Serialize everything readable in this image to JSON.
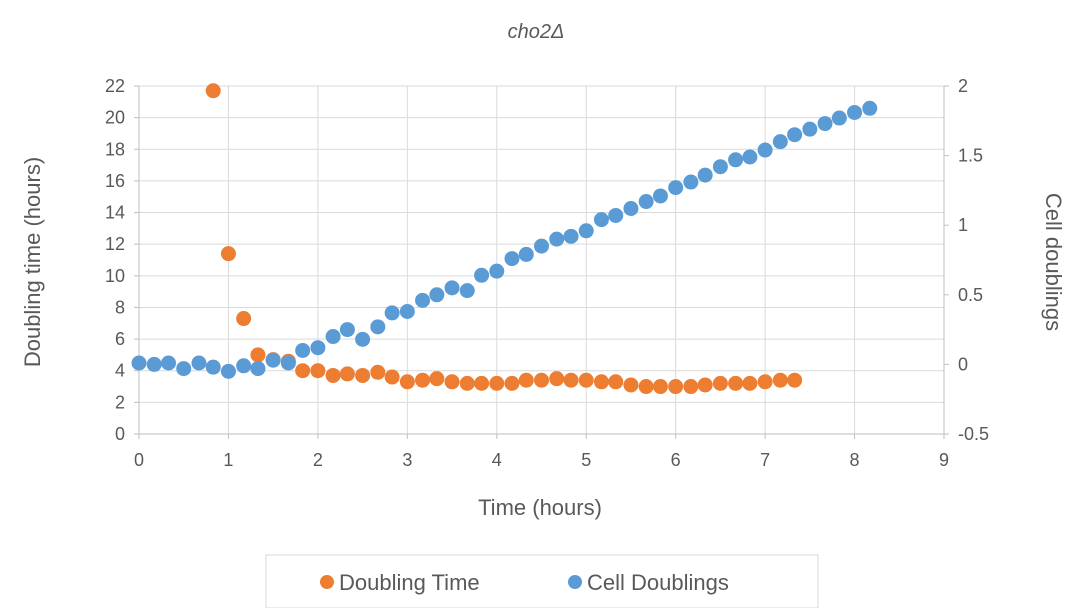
{
  "chart_data": {
    "type": "scatter",
    "title": "cho2Δ",
    "xlabel": "Time (hours)",
    "ylabel": "Doubling time (hours)",
    "y2label": "Cell doublings",
    "xlim": [
      0,
      9
    ],
    "ylim": [
      0,
      22
    ],
    "y2lim": [
      -0.5,
      2
    ],
    "xticks": [
      "0",
      "1",
      "2",
      "3",
      "4",
      "5",
      "6",
      "7",
      "8",
      "9"
    ],
    "yticks": [
      "0",
      "2",
      "4",
      "6",
      "8",
      "10",
      "12",
      "14",
      "16",
      "18",
      "20",
      "22"
    ],
    "y2ticks": [
      "-0.5",
      "0",
      "0.5",
      "1",
      "1.5",
      "2"
    ],
    "grid": true,
    "legend_position": "bottom",
    "series": [
      {
        "name": "Doubling Time",
        "axis": "left",
        "color": "#ED7D31",
        "x": [
          0.83,
          1.0,
          1.17,
          1.33,
          1.5,
          1.67,
          1.83,
          2.0,
          2.17,
          2.33,
          2.5,
          2.67,
          2.83,
          3.0,
          3.17,
          3.33,
          3.5,
          3.67,
          3.83,
          4.0,
          4.17,
          4.33,
          4.5,
          4.67,
          4.83,
          5.0,
          5.17,
          5.33,
          5.5,
          5.67,
          5.83,
          6.0,
          6.17,
          6.33,
          6.5,
          6.67,
          6.83,
          7.0,
          7.17,
          7.33
        ],
        "y": [
          21.7,
          11.4,
          7.3,
          5.0,
          4.7,
          4.6,
          4.0,
          4.0,
          3.7,
          3.8,
          3.7,
          3.9,
          3.6,
          3.3,
          3.4,
          3.5,
          3.3,
          3.2,
          3.2,
          3.2,
          3.2,
          3.4,
          3.4,
          3.5,
          3.4,
          3.4,
          3.3,
          3.3,
          3.1,
          3.0,
          3.0,
          3.0,
          3.0,
          3.1,
          3.2,
          3.2,
          3.2,
          3.3,
          3.4,
          3.4
        ]
      },
      {
        "name": "Cell Doublings",
        "axis": "right",
        "color": "#5B9BD5",
        "x": [
          0.0,
          0.17,
          0.33,
          0.5,
          0.67,
          0.83,
          1.0,
          1.17,
          1.33,
          1.5,
          1.67,
          1.83,
          2.0,
          2.17,
          2.33,
          2.5,
          2.67,
          2.83,
          3.0,
          3.17,
          3.33,
          3.5,
          3.67,
          3.83,
          4.0,
          4.17,
          4.33,
          4.5,
          4.67,
          4.83,
          5.0,
          5.17,
          5.33,
          5.5,
          5.67,
          5.83,
          6.0,
          6.17,
          6.33,
          6.5,
          6.67,
          6.83,
          7.0,
          7.17,
          7.33,
          7.5,
          7.67,
          7.83,
          8.0,
          8.17
        ],
        "y": [
          0.01,
          0.0,
          0.01,
          -0.03,
          0.01,
          -0.02,
          -0.05,
          -0.01,
          -0.03,
          0.03,
          0.01,
          0.1,
          0.12,
          0.2,
          0.25,
          0.18,
          0.27,
          0.37,
          0.38,
          0.46,
          0.5,
          0.55,
          0.53,
          0.64,
          0.67,
          0.76,
          0.79,
          0.85,
          0.9,
          0.92,
          0.96,
          1.04,
          1.07,
          1.12,
          1.17,
          1.21,
          1.27,
          1.31,
          1.36,
          1.42,
          1.47,
          1.49,
          1.54,
          1.6,
          1.65,
          1.69,
          1.73,
          1.77,
          1.81,
          1.84
        ]
      }
    ]
  }
}
